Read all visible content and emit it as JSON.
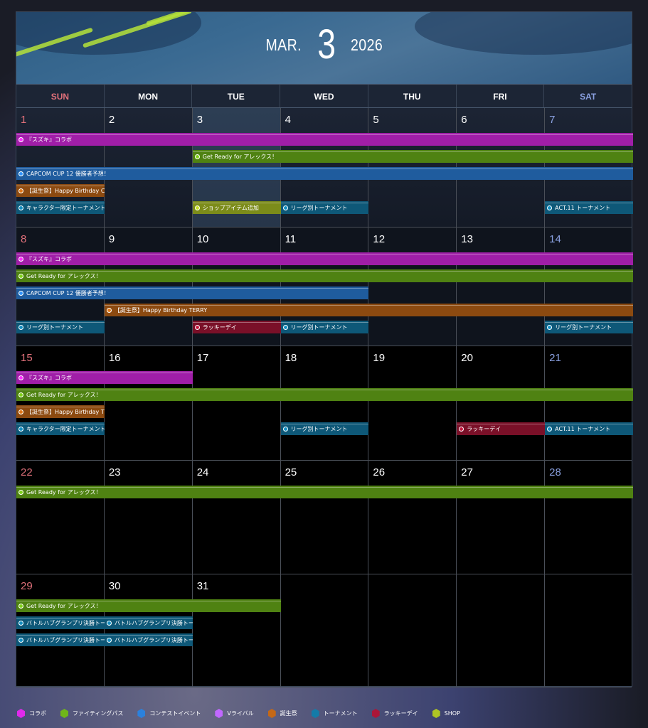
{
  "header": {
    "month": "MAR.",
    "day": "3",
    "year": "2026"
  },
  "weekdays": [
    {
      "label": "SUN",
      "color": "#e0707a"
    },
    {
      "label": "MON",
      "color": "#ffffff"
    },
    {
      "label": "TUE",
      "color": "#ffffff"
    },
    {
      "label": "WED",
      "color": "#ffffff"
    },
    {
      "label": "THU",
      "color": "#ffffff"
    },
    {
      "label": "FRI",
      "color": "#ffffff"
    },
    {
      "label": "SAT",
      "color": "#8aa0e0"
    }
  ],
  "today": 3,
  "categories": {
    "collab": {
      "label": "コラボ",
      "color": "#a01ea8"
    },
    "fightpass": {
      "label": "ファイティングパス",
      "color": "#4f8212"
    },
    "contest": {
      "label": "コンテストイベント",
      "color": "#1f5c9e"
    },
    "vrival": {
      "label": "Vライバル",
      "color": "#8a4ad0"
    },
    "birthday": {
      "label": "誕生祭",
      "color": "#8c4a10"
    },
    "tournament": {
      "label": "トーナメント",
      "color": "#0e5878"
    },
    "lucky": {
      "label": "ラッキーデイ",
      "color": "#7a1028"
    },
    "shop": {
      "label": "SHOP",
      "color": "#7c8c1a"
    }
  },
  "legend_order": [
    "collab",
    "fightpass",
    "contest",
    "vrival",
    "birthday",
    "tournament",
    "lucky",
    "shop"
  ],
  "weeks": [
    {
      "days": [
        1,
        2,
        3,
        4,
        5,
        6,
        7
      ],
      "events": [
        {
          "cat": "collab",
          "start": 0,
          "end": 6,
          "label": "『スズキ』コラボ"
        },
        {
          "cat": "fightpass",
          "start": 2,
          "end": 6,
          "label": "Get Ready for アレックス！"
        },
        {
          "cat": "contest",
          "start": 0,
          "end": 6,
          "label": "CAPCOM CUP 12 優勝者予想！"
        },
        {
          "cat": "birthday",
          "start": 0,
          "end": 0,
          "label": "【誕生祭】Happy Birthday CHUN-LI"
        },
        {
          "cat": "tournament",
          "start": 0,
          "end": 0,
          "label": "キャラクター限定トーナメント｜"
        },
        {
          "cat": "shop",
          "start": 2,
          "end": 2,
          "label": "ショップアイテム追加"
        },
        {
          "cat": "tournament",
          "start": 3,
          "end": 3,
          "label": "リーグ別トーナメント"
        },
        {
          "cat": "tournament",
          "start": 6,
          "end": 6,
          "label": "ACT.11 トーナメント"
        }
      ]
    },
    {
      "days": [
        8,
        9,
        10,
        11,
        12,
        13,
        14
      ],
      "events": [
        {
          "cat": "collab",
          "start": 0,
          "end": 6,
          "label": "『スズキ』コラボ"
        },
        {
          "cat": "fightpass",
          "start": 0,
          "end": 6,
          "label": "Get Ready for アレックス！"
        },
        {
          "cat": "contest",
          "start": 0,
          "end": 3,
          "label": "CAPCOM CUP 12 優勝者予想！"
        },
        {
          "cat": "birthday",
          "start": 1,
          "end": 6,
          "label": "【誕生祭】Happy Birthday TERRY"
        },
        {
          "cat": "tournament",
          "start": 0,
          "end": 0,
          "label": "リーグ別トーナメント"
        },
        {
          "cat": "lucky",
          "start": 2,
          "end": 2,
          "label": "ラッキーデイ"
        },
        {
          "cat": "tournament",
          "start": 3,
          "end": 3,
          "label": "リーグ別トーナメント"
        },
        {
          "cat": "tournament",
          "start": 6,
          "end": 6,
          "label": "リーグ別トーナメント"
        }
      ]
    },
    {
      "days": [
        15,
        16,
        17,
        18,
        19,
        20,
        21
      ],
      "events": [
        {
          "cat": "collab",
          "start": 0,
          "end": 1,
          "label": "『スズキ』コラボ"
        },
        {
          "cat": "fightpass",
          "start": 0,
          "end": 6,
          "label": "Get Ready for アレックス！"
        },
        {
          "cat": "birthday",
          "start": 0,
          "end": 0,
          "label": "【誕生祭】Happy Birthday TERRY"
        },
        {
          "cat": "tournament",
          "start": 0,
          "end": 0,
          "label": "キャラクター限定トーナメント｜"
        },
        {
          "cat": "tournament",
          "start": 3,
          "end": 3,
          "label": "リーグ別トーナメント"
        },
        {
          "cat": "lucky",
          "start": 5,
          "end": 5,
          "label": "ラッキーデイ"
        },
        {
          "cat": "tournament",
          "start": 6,
          "end": 6,
          "label": "ACT.11 トーナメント"
        }
      ]
    },
    {
      "days": [
        22,
        23,
        24,
        25,
        26,
        27,
        28
      ],
      "events": [
        {
          "cat": "fightpass",
          "start": 0,
          "end": 6,
          "label": "Get Ready for アレックス！"
        }
      ]
    },
    {
      "days": [
        29,
        30,
        31,
        null,
        null,
        null,
        null
      ],
      "events": [
        {
          "cat": "fightpass",
          "start": 0,
          "end": 2,
          "label": "Get Ready for アレックス！"
        },
        {
          "cat": "tournament",
          "start": 0,
          "end": 0,
          "label": "バトルハブグランプリ決勝トーナ"
        },
        {
          "cat": "tournament",
          "start": 1,
          "end": 1,
          "label": "バトルハブグランプリ決勝トーナ"
        },
        {
          "cat": "tournament",
          "start": 0,
          "end": 0,
          "label": "バトルハブグランプリ決勝トーナ"
        },
        {
          "cat": "tournament",
          "start": 1,
          "end": 1,
          "label": "バトルハブグランプリ決勝トーナ"
        }
      ]
    }
  ]
}
